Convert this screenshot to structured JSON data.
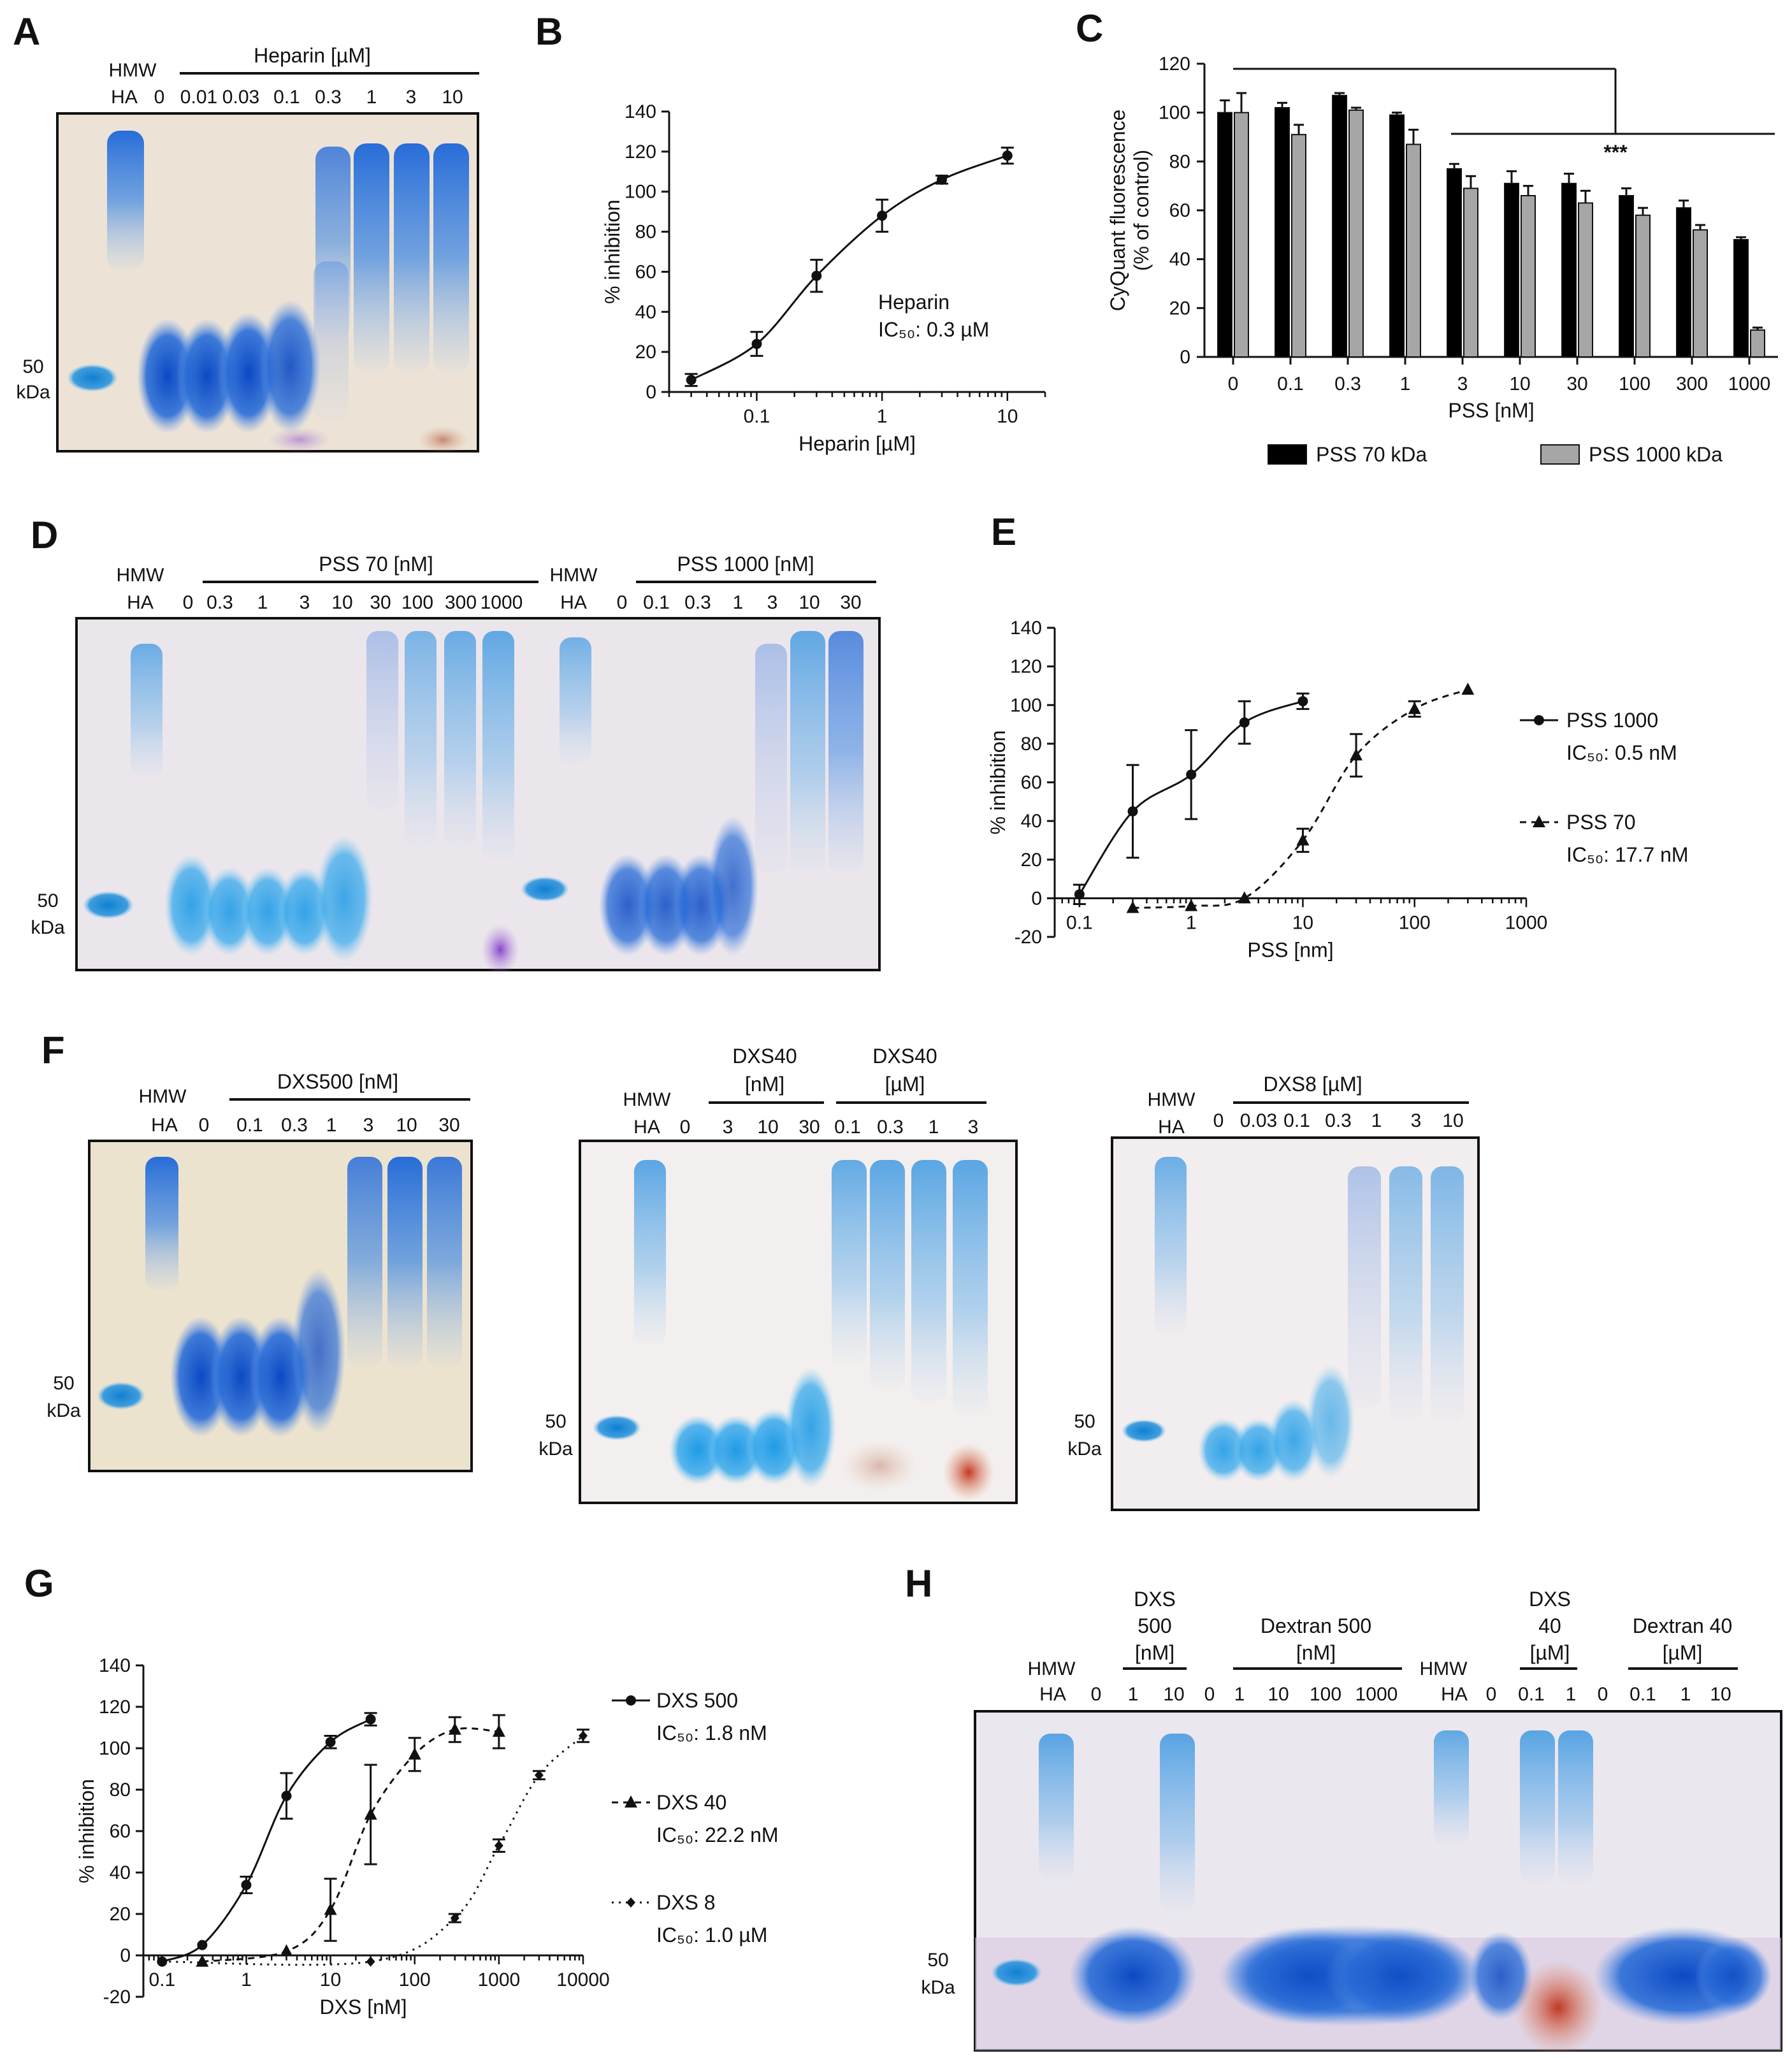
{
  "figure": {
    "A": {
      "letter": "A",
      "ladder_top": "HMW",
      "ladder_bot": "HA",
      "title": "Heparin [µM]",
      "lanes": [
        "0",
        "0.01",
        "0.03",
        "0.1",
        "0.3",
        "1",
        "3",
        "10"
      ],
      "marker_top": "50",
      "marker_bot": "kDa"
    },
    "B": {
      "letter": "B"
    },
    "C": {
      "letter": "C",
      "sig": "***"
    },
    "D": {
      "letter": "D",
      "ladder_top": "HMW",
      "ladder_bot": "HA",
      "title1": "PSS 70 [nM]",
      "lanes1": [
        "0",
        "0.3",
        "1",
        "3",
        "10",
        "30",
        "100",
        "300",
        "1000"
      ],
      "ladder2_top": "HMW",
      "ladder2_bot": "HA",
      "title2": "PSS 1000 [nM]",
      "lanes2": [
        "0",
        "0.1",
        "0.3",
        "1",
        "3",
        "10",
        "30"
      ],
      "marker_top": "50",
      "marker_bot": "kDa"
    },
    "E": {
      "letter": "E"
    },
    "F": {
      "letter": "F",
      "gel1": {
        "ladder_top": "HMW",
        "ladder_bot": "HA",
        "title": "DXS500 [nM]",
        "lanes": [
          "0",
          "0.1",
          "0.3",
          "1",
          "3",
          "10",
          "30"
        ]
      },
      "gel2": {
        "ladder_top": "HMW",
        "ladder_bot": "HA",
        "title_a1": "DXS40",
        "title_a2": "[nM]",
        "title_b1": "DXS40",
        "title_b2": "[µM]",
        "lanes": [
          "0",
          "3",
          "10",
          "30",
          "0.1",
          "0.3",
          "1",
          "3"
        ]
      },
      "gel3": {
        "ladder_top": "HMW",
        "ladder_bot": "HA",
        "title": "DXS8 [µM]",
        "lanes": [
          "0",
          "0.03",
          "0.1",
          "0.3",
          "1",
          "3",
          "10"
        ]
      },
      "marker_top": "50",
      "marker_bot": "kDa"
    },
    "G": {
      "letter": "G"
    },
    "H": {
      "letter": "H",
      "ladder_top": "HMW",
      "ladder_bot": "HA",
      "g1_l1": "DXS",
      "g1_l2": "500",
      "g1_l3": "[nM]",
      "g2_l1": "Dextran 500",
      "g2_l2": "[nM]",
      "g3_l1": "DXS",
      "g3_l2": "40",
      "g3_l3": "[µM]",
      "g4_l1": "Dextran 40",
      "g4_l2": "[µM]",
      "lanes": [
        "0",
        "1",
        "10",
        "0",
        "1",
        "10",
        "100",
        "1000",
        "HMW",
        "HA",
        "0",
        "0.1",
        "1",
        "0",
        "0.1",
        "1",
        "10"
      ],
      "marker_top": "50",
      "marker_bot": "kDa"
    }
  },
  "chart_data": [
    {
      "id": "B",
      "type": "line",
      "xlabel": "Heparin [µM]",
      "ylabel": "% inhibition",
      "xscale": "log",
      "xlim": [
        0.02,
        20
      ],
      "ylim": [
        0,
        140
      ],
      "yticks": [
        "0",
        "20",
        "40",
        "60",
        "80",
        "100",
        "120",
        "140"
      ],
      "xticks": [
        "0.1",
        "1",
        "10"
      ],
      "series": [
        {
          "name": "Heparin",
          "x": [
            0.03,
            0.1,
            0.3,
            1,
            3,
            10
          ],
          "y": [
            6,
            24,
            58,
            88,
            106,
            118
          ],
          "err": [
            3,
            6,
            8,
            8,
            2,
            4
          ]
        }
      ],
      "annotation1": "Heparin",
      "annotation2": "IC₅₀: 0.3 µM"
    },
    {
      "id": "C",
      "type": "bar",
      "title": "",
      "xlabel": "PSS [nM]",
      "ylabel1": "CyQuant fluorescence",
      "ylabel2": "(% of control)",
      "ylim": [
        0,
        120
      ],
      "yticks": [
        "0",
        "20",
        "40",
        "60",
        "80",
        "100",
        "120"
      ],
      "categories": [
        "0",
        "0.1",
        "0.3",
        "1",
        "3",
        "10",
        "30",
        "100",
        "300",
        "1000"
      ],
      "series": [
        {
          "name": "PSS 70 kDa",
          "color": "#000000",
          "values": [
            100,
            102,
            107,
            99,
            77,
            71,
            71,
            66,
            61,
            48
          ],
          "err": [
            5,
            2,
            1,
            1,
            2,
            5,
            4,
            3,
            3,
            1
          ]
        },
        {
          "name": "PSS 1000 kDa",
          "color": "#a6a6a6",
          "values": [
            100,
            91,
            101,
            87,
            69,
            66,
            63,
            58,
            52,
            11
          ],
          "err": [
            8,
            4,
            1,
            6,
            5,
            4,
            5,
            3,
            2,
            1
          ]
        }
      ],
      "legend1": "PSS 70 kDa",
      "legend2": "PSS 1000 kDa"
    },
    {
      "id": "E",
      "type": "line",
      "xlabel": "PSS [nm]",
      "ylabel": "% inhibition",
      "xscale": "log",
      "xlim": [
        0.06,
        1000
      ],
      "ylim": [
        -20,
        140
      ],
      "yticks": [
        "-20",
        "0",
        "20",
        "40",
        "60",
        "80",
        "100",
        "120",
        "140"
      ],
      "xticks": [
        "0.1",
        "1",
        "10",
        "100",
        "1000"
      ],
      "series": [
        {
          "name": "PSS 1000",
          "marker": "circle",
          "dash": false,
          "x": [
            0.1,
            0.3,
            1,
            3,
            10
          ],
          "y": [
            2,
            45,
            64,
            91,
            102
          ],
          "err": [
            5,
            24,
            23,
            11,
            4
          ],
          "ic": "IC₅₀: 0.5 nM"
        },
        {
          "name": "PSS 70",
          "marker": "triangle",
          "dash": true,
          "x": [
            0.3,
            1,
            3,
            10,
            30,
            100,
            300
          ],
          "y": [
            -5,
            -4,
            0,
            30,
            74,
            98,
            108
          ],
          "err": [
            0,
            0,
            0,
            6,
            11,
            4,
            0
          ],
          "ic": "IC₅₀: 17.7 nM"
        }
      ]
    },
    {
      "id": "G",
      "type": "line",
      "xlabel": "DXS  [nM]",
      "ylabel": "% inhibition",
      "xscale": "log",
      "xlim": [
        0.06,
        10000
      ],
      "ylim": [
        -20,
        140
      ],
      "yticks": [
        "-20",
        "0",
        "20",
        "40",
        "60",
        "80",
        "100",
        "120",
        "140"
      ],
      "xticks": [
        "0.1",
        "1",
        "10",
        "100",
        "1000",
        "10000"
      ],
      "series": [
        {
          "name": "DXS 500",
          "marker": "circle",
          "dash": "solid",
          "x": [
            0.1,
            0.3,
            1,
            3,
            10,
            30
          ],
          "y": [
            -3,
            5,
            34,
            77,
            103,
            114
          ],
          "err": [
            0,
            0,
            4,
            11,
            3,
            3
          ],
          "ic": "IC₅₀: 1.8 nM"
        },
        {
          "name": "DXS 40",
          "marker": "triangle",
          "dash": "dash",
          "x": [
            0.3,
            3,
            10,
            30,
            100,
            300,
            1000
          ],
          "y": [
            -3,
            2,
            22,
            68,
            97,
            109,
            108
          ],
          "err": [
            0,
            0,
            15,
            24,
            8,
            6,
            8
          ],
          "ic": "IC₅₀: 22.2 nM"
        },
        {
          "name": "DXS 8",
          "marker": "diamond",
          "dash": "dot",
          "x": [
            0.1,
            30,
            300,
            1000,
            3000,
            10000
          ],
          "y": [
            -3,
            -3,
            18,
            53,
            87,
            106
          ],
          "err": [
            0,
            0,
            2,
            3,
            2,
            3
          ],
          "ic": "IC₅₀: 1.0 µM"
        }
      ]
    }
  ]
}
